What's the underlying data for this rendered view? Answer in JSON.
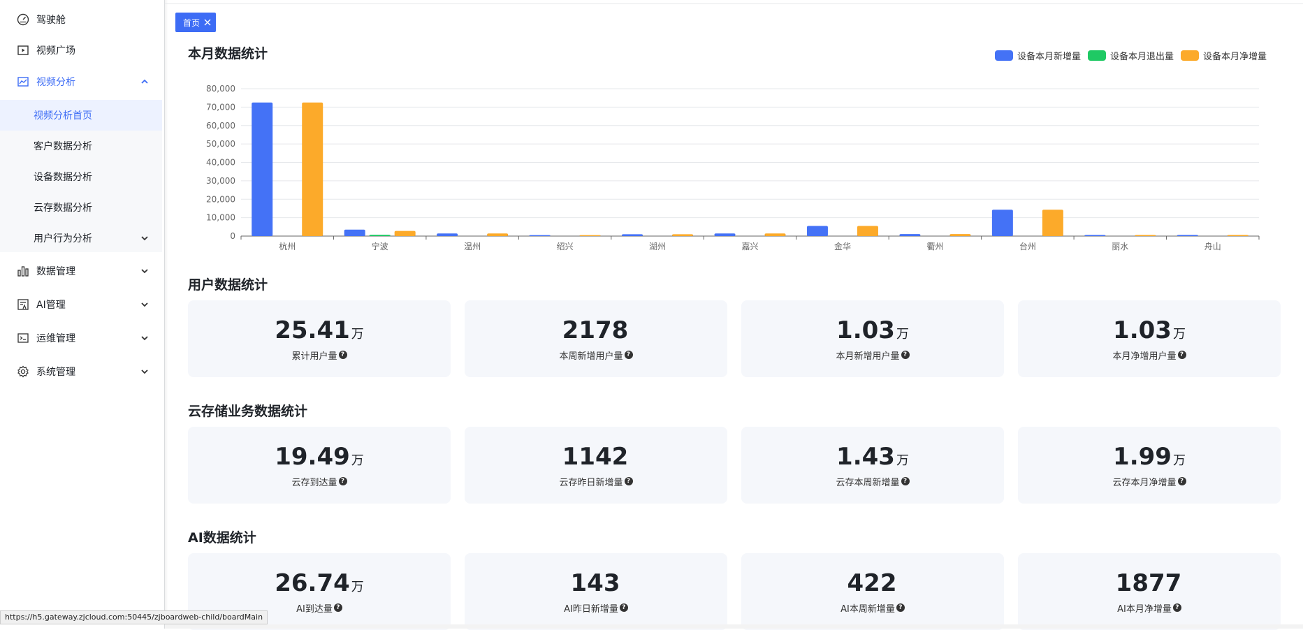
{
  "sidebar": {
    "items": [
      {
        "label": "驾驶舱",
        "icon": "dashboard-icon"
      },
      {
        "label": "视频广场",
        "icon": "video-play-icon"
      },
      {
        "label": "视频分析",
        "icon": "line-chart-icon"
      },
      {
        "label": "数据管理",
        "icon": "bar-chart-icon"
      },
      {
        "label": "AI管理",
        "icon": "ai-doc-icon"
      },
      {
        "label": "运维管理",
        "icon": "terminal-icon"
      },
      {
        "label": "系统管理",
        "icon": "gear-icon"
      }
    ],
    "sub_items": [
      {
        "label": "视频分析首页"
      },
      {
        "label": "客户数据分析"
      },
      {
        "label": "设备数据分析"
      },
      {
        "label": "云存数据分析"
      },
      {
        "label": "用户行为分析"
      }
    ]
  },
  "tabs": [
    {
      "label": "首页"
    }
  ],
  "sections": {
    "monthly": "本月数据统计",
    "user": "用户数据统计",
    "cloud": "云存储业务数据统计",
    "ai": "AI数据统计"
  },
  "user_cards": [
    {
      "value": "25.41",
      "unit": "万",
      "label": "累计用户量"
    },
    {
      "value": "2178",
      "unit": "",
      "label": "本周新增用户量"
    },
    {
      "value": "1.03",
      "unit": "万",
      "label": "本月新增用户量"
    },
    {
      "value": "1.03",
      "unit": "万",
      "label": "本月净增用户量"
    }
  ],
  "cloud_cards": [
    {
      "value": "19.49",
      "unit": "万",
      "label": "云存到达量"
    },
    {
      "value": "1142",
      "unit": "",
      "label": "云存昨日新增量"
    },
    {
      "value": "1.43",
      "unit": "万",
      "label": "云存本周新增量"
    },
    {
      "value": "1.99",
      "unit": "万",
      "label": "云存本月净增量"
    }
  ],
  "ai_cards": [
    {
      "value": "26.74",
      "unit": "万",
      "label": "AI到达量"
    },
    {
      "value": "143",
      "unit": "",
      "label": "AI昨日新增量"
    },
    {
      "value": "422",
      "unit": "",
      "label": "AI本周新增量"
    },
    {
      "value": "1877",
      "unit": "",
      "label": "AI本月净增量"
    }
  ],
  "help_glyph": "?",
  "status_url": "https://h5.gateway.zjcloud.com:50445/zjboardweb-child/boardMain",
  "chart_data": {
    "type": "bar",
    "title": "本月数据统计",
    "categories": [
      "杭州",
      "宁波",
      "温州",
      "绍兴",
      "湖州",
      "嘉兴",
      "金华",
      "衢州",
      "台州",
      "丽水",
      "舟山"
    ],
    "series": [
      {
        "name": "设备本月新增量",
        "color": "#4472f6",
        "values": [
          72500,
          3500,
          1400,
          500,
          1000,
          1400,
          5500,
          1100,
          14300,
          600,
          600
        ]
      },
      {
        "name": "设备本月退出量",
        "color": "#1fc964",
        "values": [
          0,
          700,
          0,
          0,
          0,
          0,
          0,
          0,
          0,
          0,
          0
        ]
      },
      {
        "name": "设备本月净增量",
        "color": "#fcaa2a",
        "values": [
          72500,
          2800,
          1400,
          500,
          1000,
          1400,
          5500,
          1100,
          14300,
          600,
          600
        ]
      }
    ],
    "y_ticks": [
      "0",
      "10,000",
      "20,000",
      "30,000",
      "40,000",
      "50,000",
      "60,000",
      "70,000",
      "80,000"
    ],
    "ylim": [
      0,
      80000
    ],
    "grid": true,
    "legend": "top-right"
  }
}
